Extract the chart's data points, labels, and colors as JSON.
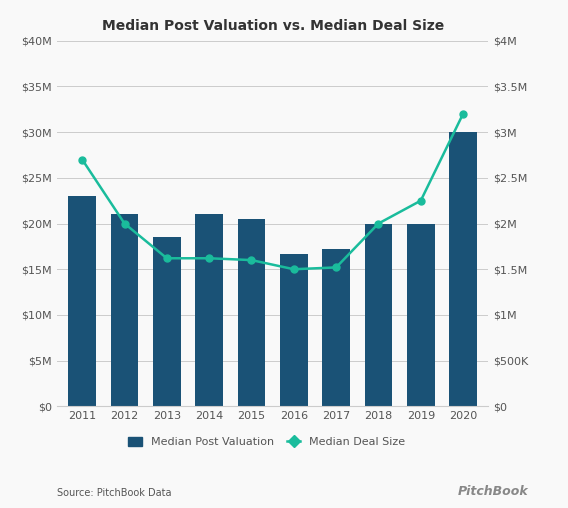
{
  "title": "Median Post Valuation vs. Median Deal Size",
  "years": [
    2011,
    2012,
    2013,
    2014,
    2015,
    2016,
    2017,
    2018,
    2019,
    2020
  ],
  "bar_values": [
    23000000,
    21000000,
    18500000,
    21000000,
    20500000,
    16700000,
    17200000,
    20000000,
    20000000,
    30000000
  ],
  "line_values": [
    2700000,
    2000000,
    1620000,
    1620000,
    1600000,
    1500000,
    1520000,
    2000000,
    2250000,
    3200000
  ],
  "bar_color": "#1a5276",
  "line_color": "#1abc9c",
  "bar_ylim": [
    0,
    40000000
  ],
  "line_ylim": [
    0,
    4000000
  ],
  "left_yticks": [
    0,
    5000000,
    10000000,
    15000000,
    20000000,
    25000000,
    30000000,
    35000000,
    40000000
  ],
  "right_yticks": [
    0,
    500000,
    1000000,
    1500000,
    2000000,
    2500000,
    3000000,
    3500000,
    4000000
  ],
  "left_yticklabels": [
    "$0",
    "$5M",
    "$10M",
    "$15M",
    "$20M",
    "$25M",
    "$30M",
    "$35M",
    "$40M"
  ],
  "right_yticklabels": [
    "$0",
    "$500K",
    "$1M",
    "$1.5M",
    "$2M",
    "$2.5M",
    "$3M",
    "$3.5M",
    "$4M"
  ],
  "legend_bar_label": "Median Post Valuation",
  "legend_line_label": "Median Deal Size",
  "source_text": "Source: PitchBook Data",
  "background_color": "#f9f9f9",
  "grid_color": "#cccccc",
  "tick_color": "#555555",
  "title_fontsize": 10,
  "tick_fontsize": 8
}
